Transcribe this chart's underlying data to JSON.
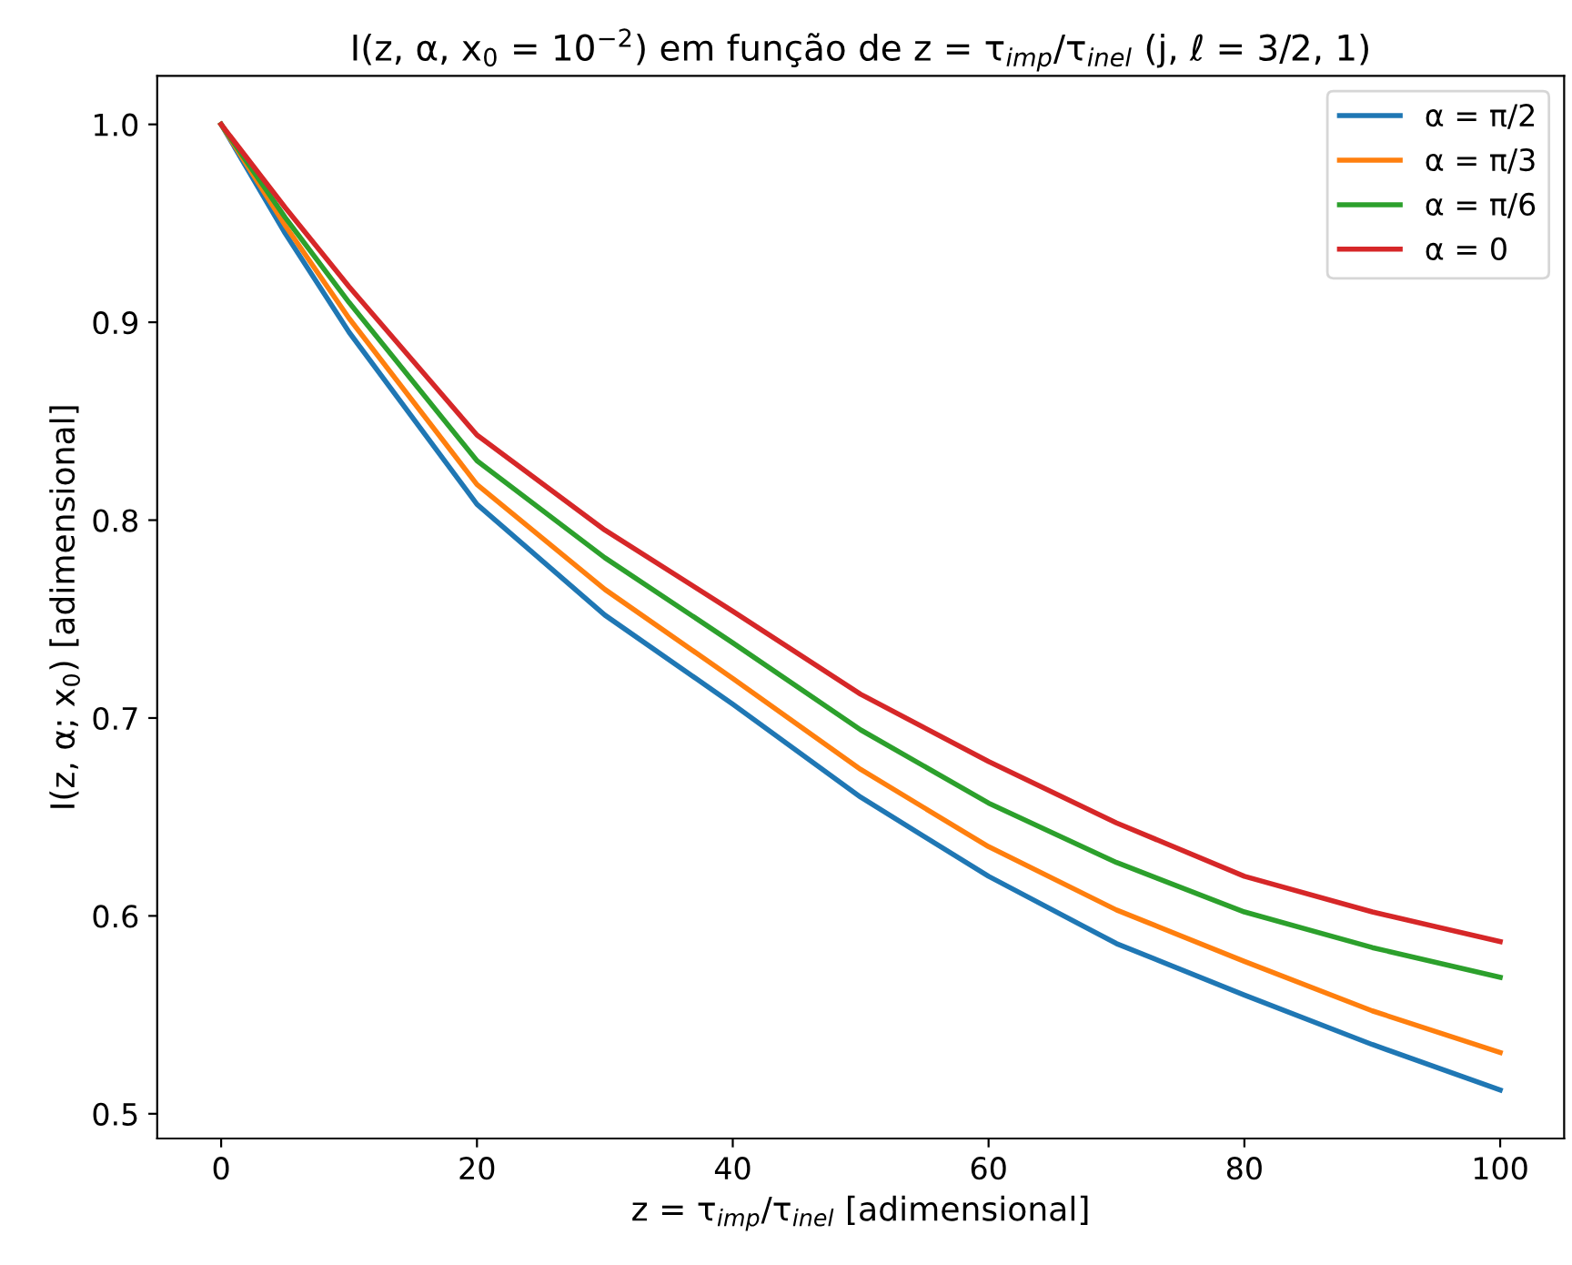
{
  "chart_data": {
    "type": "line",
    "title": "I(z, α, x$_{0}$ = 10$^{−2}$) em função de z = τ$_{imp}$/τ$_{inel}$ (j, ℓ = 3/2, 1)",
    "xlabel": "z = τ$_{imp}$/τ$_{inel}$ [adimensional]",
    "ylabel": "I(z, α; x$_{0}$) [adimensional]",
    "x": [
      0,
      5,
      10,
      20,
      30,
      40,
      50,
      60,
      70,
      80,
      90,
      100
    ],
    "series": [
      {
        "name": "α = π/2",
        "color": "#1f77b4",
        "values": [
          1.0,
          0.945,
          0.895,
          0.808,
          0.752,
          0.707,
          0.66,
          0.62,
          0.586,
          0.56,
          0.535,
          0.512
        ]
      },
      {
        "name": "α = π/3",
        "color": "#ff7f0e",
        "values": [
          1.0,
          0.949,
          0.902,
          0.818,
          0.765,
          0.72,
          0.674,
          0.635,
          0.603,
          0.577,
          0.552,
          0.531
        ]
      },
      {
        "name": "α = π/6",
        "color": "#2ca02c",
        "values": [
          1.0,
          0.953,
          0.91,
          0.83,
          0.781,
          0.738,
          0.694,
          0.657,
          0.627,
          0.602,
          0.584,
          0.569
        ]
      },
      {
        "name": "α = 0",
        "color": "#d62728",
        "values": [
          1.0,
          0.958,
          0.918,
          0.843,
          0.795,
          0.754,
          0.712,
          0.678,
          0.647,
          0.62,
          0.602,
          0.587
        ]
      }
    ],
    "xlim": [
      -5,
      105
    ],
    "xticks": [
      0,
      20,
      40,
      60,
      80,
      100
    ],
    "ylim": [
      0.4875,
      1.0245
    ],
    "yticks": [
      {
        "value": 0.5,
        "label": "0.5"
      },
      {
        "value": 0.6,
        "label": "0.6"
      },
      {
        "value": 0.7,
        "label": "0.7"
      },
      {
        "value": 0.8,
        "label": "0.8"
      },
      {
        "value": 0.9,
        "label": "0.9"
      },
      {
        "value": 1.0,
        "label": "1.0"
      }
    ],
    "legend": "top right",
    "grid": false,
    "marker": "none",
    "line_style": "solid"
  }
}
